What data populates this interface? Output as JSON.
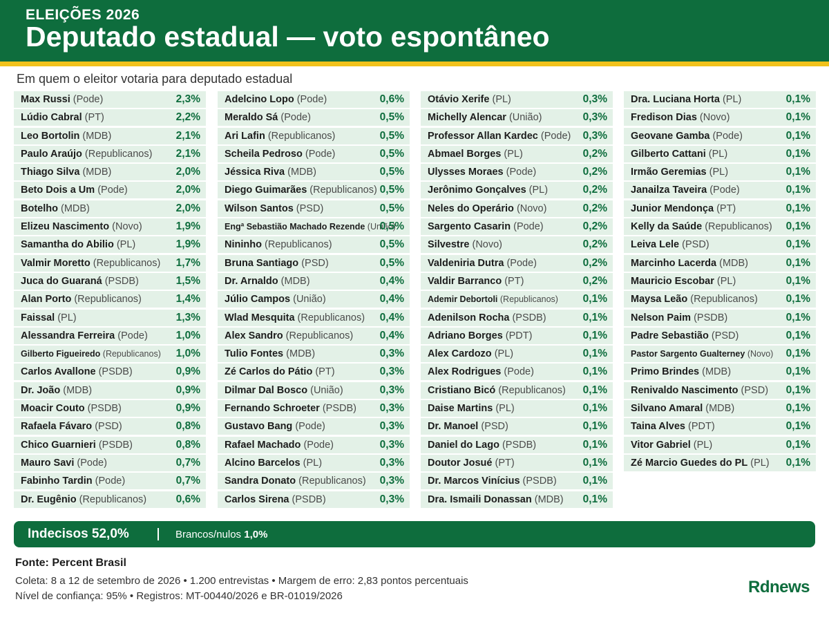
{
  "header": {
    "kicker": "ELEIÇÕES 2026",
    "title": "Deputado estadual — voto espontâneo",
    "subtitle": "Em quem o eleitor votaria para deputado estadual"
  },
  "colors": {
    "primary": "#0e6d3d",
    "accent": "#f1c21b",
    "row": "#e3f1e7"
  },
  "chart_data": {
    "type": "table",
    "columns": [
      [
        {
          "name": "Max Russi",
          "party": "(Pode)",
          "value": "2,3%"
        },
        {
          "name": "Lúdio Cabral",
          "party": "(PT)",
          "value": "2,2%"
        },
        {
          "name": "Leo Bortolin",
          "party": "(MDB)",
          "value": "2,1%"
        },
        {
          "name": "Paulo Araújo",
          "party": "(Republicanos)",
          "value": "2,1%"
        },
        {
          "name": "Thiago Silva",
          "party": "(MDB)",
          "value": "2,0%"
        },
        {
          "name": "Beto Dois a Um",
          "party": "(Pode)",
          "value": "2,0%"
        },
        {
          "name": "Botelho",
          "party": "(MDB)",
          "value": "2,0%"
        },
        {
          "name": "Elizeu Nascimento",
          "party": "(Novo)",
          "value": "1,9%"
        },
        {
          "name": "Samantha do Abilio",
          "party": "(PL)",
          "value": "1,9%"
        },
        {
          "name": "Valmir Moretto",
          "party": "(Republicanos)",
          "value": "1,7%"
        },
        {
          "name": "Juca do Guaraná",
          "party": "(PSDB)",
          "value": "1,5%"
        },
        {
          "name": "Alan Porto",
          "party": "(Republicanos)",
          "value": "1,4%"
        },
        {
          "name": "Faissal",
          "party": "(PL)",
          "value": "1,3%"
        },
        {
          "name": "Alessandra Ferreira",
          "party": "(Pode)",
          "value": "1,0%"
        },
        {
          "name": "Gilberto Figueiredo",
          "party": "(Republicanos)",
          "value": "1,0%",
          "small": true
        },
        {
          "name": "Carlos Avallone",
          "party": "(PSDB)",
          "value": "0,9%"
        },
        {
          "name": "Dr. João",
          "party": "(MDB)",
          "value": "0,9%"
        },
        {
          "name": "Moacir Couto",
          "party": "(PSDB)",
          "value": "0,9%"
        },
        {
          "name": "Rafaela Fávaro",
          "party": "(PSD)",
          "value": "0,8%"
        },
        {
          "name": "Chico Guarnieri",
          "party": "(PSDB)",
          "value": "0,8%"
        },
        {
          "name": "Mauro Savi",
          "party": "(Pode)",
          "value": "0,7%"
        },
        {
          "name": "Fabinho Tardin",
          "party": "(Pode)",
          "value": "0,7%"
        },
        {
          "name": "Dr. Eugênio",
          "party": "(Republicanos)",
          "value": "0,6%"
        }
      ],
      [
        {
          "name": "Adelcino Lopo",
          "party": "(Pode)",
          "value": "0,6%"
        },
        {
          "name": "Meraldo Sá",
          "party": "(Pode)",
          "value": "0,5%"
        },
        {
          "name": "Ari Lafin",
          "party": "(Republicanos)",
          "value": "0,5%"
        },
        {
          "name": "Scheila Pedroso",
          "party": "(Pode)",
          "value": "0,5%"
        },
        {
          "name": "Jéssica Riva",
          "party": "(MDB)",
          "value": "0,5%"
        },
        {
          "name": "Diego Guimarães",
          "party": "(Republicanos)",
          "value": "0,5%"
        },
        {
          "name": "Wilson Santos",
          "party": "(PSD)",
          "value": "0,5%"
        },
        {
          "name": "Engª Sebastião Machado Rezende",
          "party": "(União)",
          "value": "0,5%",
          "small": true
        },
        {
          "name": "Nininho",
          "party": "(Republicanos)",
          "value": "0,5%"
        },
        {
          "name": "Bruna Santiago",
          "party": "(PSD)",
          "value": "0,5%"
        },
        {
          "name": "Dr. Arnaldo",
          "party": "(MDB)",
          "value": "0,4%"
        },
        {
          "name": "Júlio Campos",
          "party": "(União)",
          "value": "0,4%"
        },
        {
          "name": "Wlad Mesquita",
          "party": "(Republicanos)",
          "value": "0,4%"
        },
        {
          "name": "Alex Sandro",
          "party": "(Republicanos)",
          "value": "0,4%"
        },
        {
          "name": "Tulio Fontes",
          "party": "(MDB)",
          "value": "0,3%"
        },
        {
          "name": "Zé Carlos do Pátio",
          "party": "(PT)",
          "value": "0,3%"
        },
        {
          "name": "Dilmar Dal Bosco",
          "party": "(União)",
          "value": "0,3%"
        },
        {
          "name": "Fernando Schroeter",
          "party": "(PSDB)",
          "value": "0,3%"
        },
        {
          "name": "Gustavo Bang",
          "party": "(Pode)",
          "value": "0,3%"
        },
        {
          "name": "Rafael Machado",
          "party": "(Pode)",
          "value": "0,3%"
        },
        {
          "name": "Alcino Barcelos",
          "party": "(PL)",
          "value": "0,3%"
        },
        {
          "name": "Sandra Donato",
          "party": "(Republicanos)",
          "value": "0,3%"
        },
        {
          "name": "Carlos Sirena",
          "party": "(PSDB)",
          "value": "0,3%"
        }
      ],
      [
        {
          "name": "Otávio Xerife",
          "party": "(PL)",
          "value": "0,3%"
        },
        {
          "name": "Michelly Alencar",
          "party": "(União)",
          "value": "0,3%"
        },
        {
          "name": "Professor Allan Kardec",
          "party": "(Pode)",
          "value": "0,3%"
        },
        {
          "name": "Abmael Borges",
          "party": "(PL)",
          "value": "0,2%"
        },
        {
          "name": "Ulysses Moraes",
          "party": "(Pode)",
          "value": "0,2%"
        },
        {
          "name": "Jerônimo Gonçalves",
          "party": "(PL)",
          "value": "0,2%"
        },
        {
          "name": "Neles do Operário",
          "party": "(Novo)",
          "value": "0,2%"
        },
        {
          "name": "Sargento Casarin",
          "party": "(Pode)",
          "value": "0,2%"
        },
        {
          "name": "Silvestre",
          "party": "(Novo)",
          "value": "0,2%"
        },
        {
          "name": "Valdeniria Dutra",
          "party": "(Pode)",
          "value": "0,2%"
        },
        {
          "name": "Valdir Barranco",
          "party": "(PT)",
          "value": "0,2%"
        },
        {
          "name": "Ademir Debortoli",
          "party": "(Republicanos)",
          "value": "0,1%",
          "small": true
        },
        {
          "name": "Adenilson Rocha",
          "party": "(PSDB)",
          "value": "0,1%"
        },
        {
          "name": "Adriano Borges",
          "party": "(PDT)",
          "value": "0,1%"
        },
        {
          "name": "Alex Cardozo",
          "party": "(PL)",
          "value": "0,1%"
        },
        {
          "name": "Alex Rodrigues",
          "party": "(Pode)",
          "value": "0,1%"
        },
        {
          "name": "Cristiano Bicó",
          "party": "(Republicanos)",
          "value": "0,1%"
        },
        {
          "name": "Daise Martins",
          "party": "(PL)",
          "value": "0,1%"
        },
        {
          "name": "Dr. Manoel",
          "party": "(PSD)",
          "value": "0,1%"
        },
        {
          "name": "Daniel do Lago",
          "party": "(PSDB)",
          "value": "0,1%"
        },
        {
          "name": "Doutor Josué",
          "party": "(PT)",
          "value": "0,1%"
        },
        {
          "name": "Dr. Marcos Vinícius",
          "party": "(PSDB)",
          "value": "0,1%"
        },
        {
          "name": "Dra. Ismaili Donassan",
          "party": "(MDB)",
          "value": "0,1%"
        }
      ],
      [
        {
          "name": "Dra. Luciana Horta",
          "party": "(PL)",
          "value": "0,1%"
        },
        {
          "name": "Fredison Dias",
          "party": "(Novo)",
          "value": "0,1%"
        },
        {
          "name": "Geovane Gamba",
          "party": "(Pode)",
          "value": "0,1%"
        },
        {
          "name": "Gilberto Cattani",
          "party": "(PL)",
          "value": "0,1%"
        },
        {
          "name": "Irmão Geremias",
          "party": "(PL)",
          "value": "0,1%"
        },
        {
          "name": "Janailza Taveira",
          "party": "(Pode)",
          "value": "0,1%"
        },
        {
          "name": "Junior Mendonça",
          "party": "(PT)",
          "value": "0,1%"
        },
        {
          "name": "Kelly da Saúde",
          "party": "(Republicanos)",
          "value": "0,1%"
        },
        {
          "name": "Leiva Lele",
          "party": "(PSD)",
          "value": "0,1%"
        },
        {
          "name": "Marcinho Lacerda",
          "party": "(MDB)",
          "value": "0,1%"
        },
        {
          "name": "Mauricio Escobar",
          "party": "(PL)",
          "value": "0,1%"
        },
        {
          "name": "Maysa Leão",
          "party": "(Republicanos)",
          "value": "0,1%"
        },
        {
          "name": "Nelson Paim",
          "party": "(PSDB)",
          "value": "0,1%"
        },
        {
          "name": "Padre Sebastião",
          "party": "(PSD)",
          "value": "0,1%"
        },
        {
          "name": "Pastor Sargento Gualterney",
          "party": "(Novo)",
          "value": "0,1%",
          "small": true
        },
        {
          "name": "Primo Brindes",
          "party": "(MDB)",
          "value": "0,1%"
        },
        {
          "name": "Renivaldo Nascimento",
          "party": "(PSD)",
          "value": "0,1%"
        },
        {
          "name": "Silvano Amaral",
          "party": "(MDB)",
          "value": "0,1%"
        },
        {
          "name": "Taina Alves",
          "party": "(PDT)",
          "value": "0,1%"
        },
        {
          "name": "Vitor Gabriel",
          "party": "(PL)",
          "value": "0,1%"
        },
        {
          "name": "Zé Marcio Guedes do PL",
          "party": "(PL)",
          "value": "0,1%"
        }
      ]
    ]
  },
  "summary": {
    "undecided": "Indecisos 52,0%",
    "divider": "|",
    "blank_label": "Brancos/nulos",
    "blank_value": "1,0%"
  },
  "footer": {
    "source": "Fonte: Percent Brasil",
    "line1": "Coleta: 8 a 12 de setembro de 2026  •  1.200 entrevistas  •  Margem de erro: 2,83 pontos percentuais",
    "line2": "Nível de confiança: 95%  •  Registros: MT-00440/2026 e BR-01019/2026",
    "logo": "Rdnews"
  }
}
